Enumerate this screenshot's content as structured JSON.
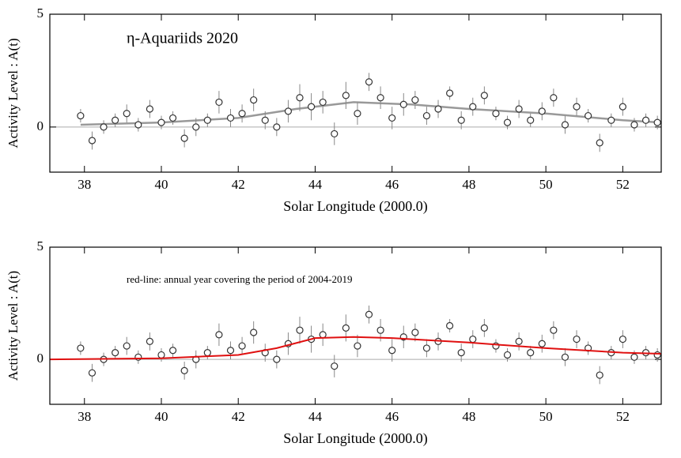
{
  "chart_data": [
    {
      "type": "scatter",
      "annotation": "η-Aquariids 2020",
      "xlabel": "Solar Longitude (2000.0)",
      "ylabel": "Activity Level : A(t)",
      "xlim": [
        37.1,
        53
      ],
      "ylim": [
        -2,
        5
      ],
      "xticks": [
        38,
        40,
        42,
        44,
        46,
        48,
        50,
        52
      ],
      "yticks": [
        0,
        5
      ],
      "color": "#333333",
      "x": [
        37.9,
        38.2,
        38.5,
        38.8,
        39.1,
        39.4,
        39.7,
        40.0,
        40.3,
        40.6,
        40.9,
        41.2,
        41.5,
        41.8,
        42.1,
        42.4,
        42.7,
        43.0,
        43.3,
        43.6,
        43.9,
        44.2,
        44.5,
        44.8,
        45.1,
        45.4,
        45.7,
        46.0,
        46.3,
        46.6,
        46.9,
        47.2,
        47.5,
        47.8,
        48.1,
        48.4,
        48.7,
        49.0,
        49.3,
        49.6,
        49.9,
        50.2,
        50.5,
        50.8,
        51.1,
        51.4,
        51.7,
        52.0,
        52.3,
        52.6,
        52.9
      ],
      "values": [
        0.5,
        -0.6,
        0.0,
        0.3,
        0.6,
        0.1,
        0.8,
        0.2,
        0.4,
        -0.5,
        0.0,
        0.3,
        1.1,
        0.4,
        0.6,
        1.2,
        0.3,
        0.0,
        0.7,
        1.3,
        0.9,
        1.1,
        -0.3,
        1.4,
        0.6,
        2.0,
        1.3,
        0.4,
        1.0,
        1.2,
        0.5,
        0.8,
        1.5,
        0.3,
        0.9,
        1.4,
        0.6,
        0.2,
        0.8,
        0.3,
        0.7,
        1.3,
        0.1,
        0.9,
        0.5,
        -0.7,
        0.3,
        0.9,
        0.1,
        0.3,
        0.2
      ],
      "errors": [
        0.3,
        0.4,
        0.3,
        0.3,
        0.4,
        0.3,
        0.4,
        0.3,
        0.3,
        0.4,
        0.4,
        0.3,
        0.5,
        0.4,
        0.4,
        0.5,
        0.4,
        0.4,
        0.5,
        0.6,
        0.6,
        0.5,
        0.5,
        0.6,
        0.5,
        0.4,
        0.5,
        0.5,
        0.5,
        0.4,
        0.4,
        0.4,
        0.3,
        0.4,
        0.4,
        0.4,
        0.3,
        0.3,
        0.4,
        0.3,
        0.4,
        0.4,
        0.4,
        0.4,
        0.3,
        0.4,
        0.3,
        0.4,
        0.3,
        0.3,
        0.3
      ],
      "line": {
        "color": "#999999",
        "x": [
          37.9,
          40,
          42,
          43.5,
          45,
          46.5,
          48,
          50,
          52,
          53
        ],
        "values": [
          0.1,
          0.2,
          0.4,
          0.8,
          1.1,
          1.0,
          0.8,
          0.6,
          0.3,
          0.2
        ]
      }
    },
    {
      "type": "scatter",
      "annotation": "red-line: annual year covering the period of 2004-2019",
      "xlabel": "Solar Longitude (2000.0)",
      "ylabel": "Activity Level : A(t)",
      "xlim": [
        37.1,
        53
      ],
      "ylim": [
        -2,
        5
      ],
      "xticks": [
        38,
        40,
        42,
        44,
        46,
        48,
        50,
        52
      ],
      "yticks": [
        0,
        5
      ],
      "color": "#333333",
      "x": [
        37.9,
        38.2,
        38.5,
        38.8,
        39.1,
        39.4,
        39.7,
        40.0,
        40.3,
        40.6,
        40.9,
        41.2,
        41.5,
        41.8,
        42.1,
        42.4,
        42.7,
        43.0,
        43.3,
        43.6,
        43.9,
        44.2,
        44.5,
        44.8,
        45.1,
        45.4,
        45.7,
        46.0,
        46.3,
        46.6,
        46.9,
        47.2,
        47.5,
        47.8,
        48.1,
        48.4,
        48.7,
        49.0,
        49.3,
        49.6,
        49.9,
        50.2,
        50.5,
        50.8,
        51.1,
        51.4,
        51.7,
        52.0,
        52.3,
        52.6,
        52.9
      ],
      "values": [
        0.5,
        -0.6,
        0.0,
        0.3,
        0.6,
        0.1,
        0.8,
        0.2,
        0.4,
        -0.5,
        0.0,
        0.3,
        1.1,
        0.4,
        0.6,
        1.2,
        0.3,
        0.0,
        0.7,
        1.3,
        0.9,
        1.1,
        -0.3,
        1.4,
        0.6,
        2.0,
        1.3,
        0.4,
        1.0,
        1.2,
        0.5,
        0.8,
        1.5,
        0.3,
        0.9,
        1.4,
        0.6,
        0.2,
        0.8,
        0.3,
        0.7,
        1.3,
        0.1,
        0.9,
        0.5,
        -0.7,
        0.3,
        0.9,
        0.1,
        0.3,
        0.2
      ],
      "errors": [
        0.3,
        0.4,
        0.3,
        0.3,
        0.4,
        0.3,
        0.4,
        0.3,
        0.3,
        0.4,
        0.4,
        0.3,
        0.5,
        0.4,
        0.4,
        0.5,
        0.4,
        0.4,
        0.5,
        0.6,
        0.6,
        0.5,
        0.5,
        0.6,
        0.5,
        0.4,
        0.5,
        0.5,
        0.5,
        0.4,
        0.4,
        0.4,
        0.3,
        0.4,
        0.4,
        0.4,
        0.3,
        0.3,
        0.4,
        0.3,
        0.4,
        0.4,
        0.4,
        0.4,
        0.3,
        0.4,
        0.3,
        0.4,
        0.3,
        0.3,
        0.3
      ],
      "line": {
        "color": "#e01010",
        "x": [
          37.1,
          40,
          42,
          43,
          44,
          45,
          46,
          48,
          50,
          52,
          53
        ],
        "values": [
          0,
          0.05,
          0.2,
          0.5,
          0.95,
          1.0,
          0.95,
          0.75,
          0.5,
          0.3,
          0.25
        ]
      }
    }
  ]
}
